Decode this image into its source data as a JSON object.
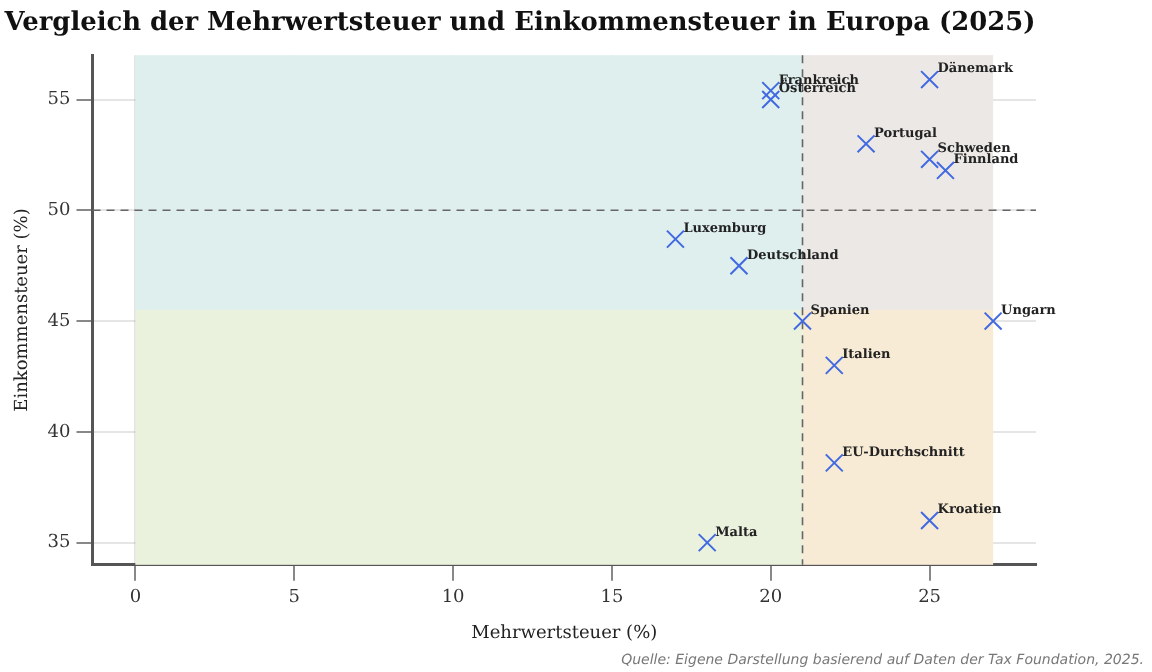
{
  "chart_data": {
    "type": "scatter",
    "title": "Vergleich der Mehrwertsteuer und Einkommensteuer in Europa (2025)",
    "xlabel": "Mehrwertsteuer (%)",
    "ylabel": "Einkommensteuer (%)",
    "x": [
      20,
      20,
      25,
      23,
      25,
      25.5,
      17,
      19,
      21,
      27,
      22,
      22,
      25,
      18
    ],
    "series": [
      {
        "color": "#4169e1",
        "values": [
          55.4,
          55.0,
          55.9,
          53.0,
          52.3,
          51.8,
          48.7,
          47.5,
          45.0,
          45.0,
          43.0,
          38.6,
          36.0,
          35.0
        ]
      }
    ],
    "xlim": [
      -1.35,
      28.35
    ],
    "ylim": [
      34,
      57
    ],
    "xticks": [
      0,
      5,
      10,
      15,
      20,
      25
    ],
    "yticks": [
      35,
      40,
      45,
      50,
      55
    ],
    "marker": "cross",
    "grid": true,
    "legend": false,
    "ref_lines": [
      {
        "axis": "x",
        "value": 21,
        "color": "#666666",
        "line_style": "dashed"
      },
      {
        "axis": "y",
        "value": 50,
        "color": "#666666",
        "line_style": "dashed"
      }
    ],
    "bands": [
      {
        "axis": "x",
        "from": 0,
        "to": 21,
        "color": "#e4f2e8"
      },
      {
        "axis": "x",
        "from": 21,
        "to": 27,
        "color": "#fce6da"
      },
      {
        "axis": "y",
        "from": 45.5,
        "to": 57,
        "color": "#d4ecf8"
      },
      {
        "axis": "y",
        "from": 34,
        "to": 45.5,
        "color": "#f2f2cc"
      }
    ],
    "annotations": [
      {
        "text": "Frankreich",
        "x": 20,
        "y": 55.4
      },
      {
        "text": "Österreich",
        "x": 20,
        "y": 55.0
      },
      {
        "text": "Dänemark",
        "x": 25,
        "y": 55.9
      },
      {
        "text": "Portugal",
        "x": 23,
        "y": 53.0
      },
      {
        "text": "Schweden",
        "x": 25,
        "y": 52.3
      },
      {
        "text": "Finnland",
        "x": 25.5,
        "y": 51.8
      },
      {
        "text": "Luxemburg",
        "x": 17,
        "y": 48.7
      },
      {
        "text": "Deutschland",
        "x": 19,
        "y": 47.5
      },
      {
        "text": "Spanien",
        "x": 21,
        "y": 45.0
      },
      {
        "text": "Ungarn",
        "x": 27,
        "y": 45.0
      },
      {
        "text": "Italien",
        "x": 22,
        "y": 43.0
      },
      {
        "text": "EU-Durchschnitt",
        "x": 22,
        "y": 38.6
      },
      {
        "text": "Kroatien",
        "x": 25,
        "y": 36.0
      },
      {
        "text": "Malta",
        "x": 18,
        "y": 35.0
      },
      "Quelle: Eigene Darstellung basierend auf Daten der Tax Foundation, 2025."
    ]
  }
}
